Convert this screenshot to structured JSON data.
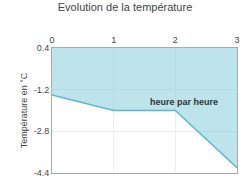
{
  "chart_data": {
    "type": "line",
    "title": "Evolution de la température",
    "ylabel": "Température en °C",
    "x": [
      0,
      1,
      2,
      3
    ],
    "values": [
      -1.4,
      -2.0,
      -2.0,
      -4.2
    ],
    "color": "#5ab8cc",
    "xlim": [
      0,
      3
    ],
    "xticks": [
      0,
      1,
      2,
      3
    ],
    "ylim": [
      -4.4,
      0.4
    ],
    "yticks": [
      0.4,
      -1.2,
      -2.8,
      -4.4
    ],
    "grid": true,
    "annotations": [
      {
        "text": "heure par heure",
        "x": 1.55,
        "y": -1.4
      }
    ]
  }
}
